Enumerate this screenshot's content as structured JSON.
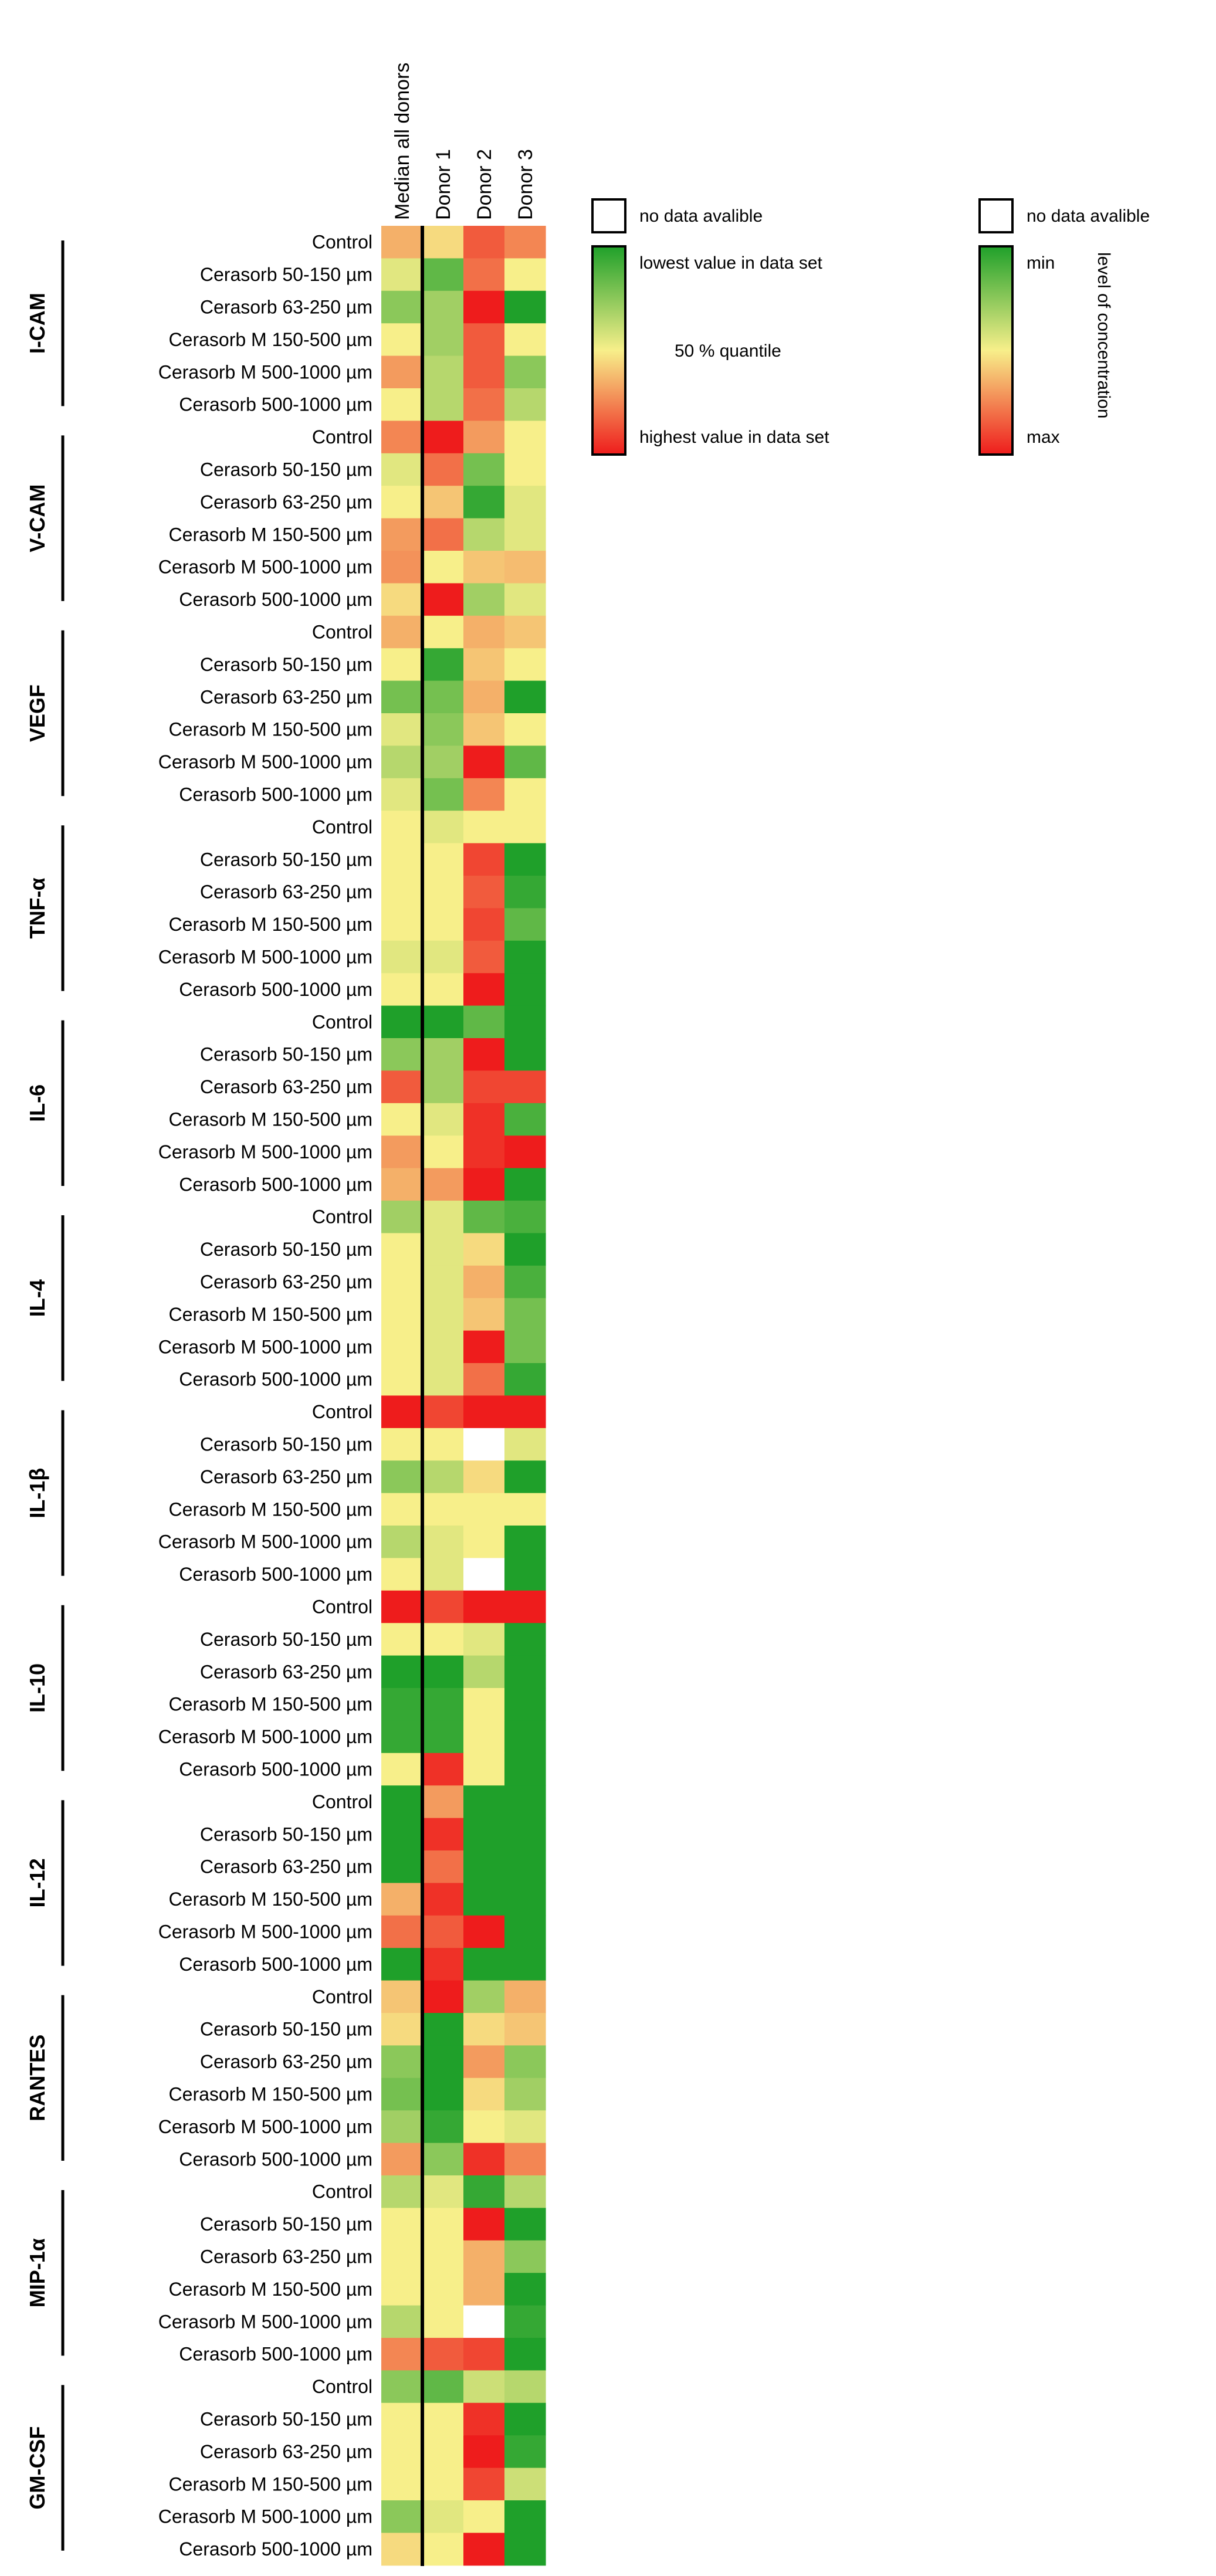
{
  "chart_data": {
    "type": "heatmap",
    "columns": [
      "Median all donors",
      "Donor 1",
      "Donor 2",
      "Donor 3"
    ],
    "row_labels": [
      "Control",
      "Cerasorb 50-150 µm",
      "Cerasorb 63-250 µm",
      "Cerasorb M 150-500 µm",
      "Cerasorb M 500-1000 µm",
      "Cerasorb 500-1000 µm"
    ],
    "value_scale": "0 = lowest value in data set (green), 0.5 = 50 % quantile (yellow), 1 = highest value in data set (red), null = no data avalible",
    "groups": [
      {
        "name": "I-CAM",
        "values": [
          [
            0.65,
            0.55,
            0.85,
            0.75
          ],
          [
            0.45,
            0.15,
            0.8,
            0.5
          ],
          [
            0.25,
            0.3,
            1.0,
            0.0
          ],
          [
            0.5,
            0.3,
            0.85,
            0.5
          ],
          [
            0.7,
            0.35,
            0.85,
            0.25
          ],
          [
            0.5,
            0.35,
            0.8,
            0.35
          ]
        ]
      },
      {
        "name": "V-CAM",
        "values": [
          [
            0.75,
            1.0,
            0.7,
            0.5
          ],
          [
            0.45,
            0.8,
            0.2,
            0.5
          ],
          [
            0.5,
            0.6,
            0.05,
            0.45
          ],
          [
            0.7,
            0.8,
            0.35,
            0.45
          ],
          [
            0.72,
            0.5,
            0.6,
            0.62
          ],
          [
            0.55,
            1.0,
            0.3,
            0.45
          ]
        ]
      },
      {
        "name": "VEGF",
        "values": [
          [
            0.65,
            0.5,
            0.65,
            0.6
          ],
          [
            0.5,
            0.05,
            0.6,
            0.5
          ],
          [
            0.2,
            0.2,
            0.65,
            0.0
          ],
          [
            0.45,
            0.25,
            0.6,
            0.5
          ],
          [
            0.35,
            0.3,
            1.0,
            0.15
          ],
          [
            0.45,
            0.2,
            0.75,
            0.5
          ]
        ]
      },
      {
        "name": "TNF-α",
        "values": [
          [
            0.5,
            0.45,
            0.5,
            0.5
          ],
          [
            0.5,
            0.5,
            0.9,
            0.0
          ],
          [
            0.5,
            0.5,
            0.85,
            0.05
          ],
          [
            0.5,
            0.5,
            0.9,
            0.15
          ],
          [
            0.45,
            0.45,
            0.85,
            0.0
          ],
          [
            0.5,
            0.5,
            1.0,
            0.0
          ]
        ]
      },
      {
        "name": "IL-6",
        "values": [
          [
            0.0,
            0.0,
            0.15,
            0.0
          ],
          [
            0.25,
            0.3,
            1.0,
            0.0
          ],
          [
            0.85,
            0.3,
            0.9,
            0.9
          ],
          [
            0.5,
            0.45,
            0.95,
            0.1
          ],
          [
            0.7,
            0.5,
            0.95,
            1.0
          ],
          [
            0.65,
            0.7,
            1.0,
            0.0
          ]
        ]
      },
      {
        "name": "IL-4",
        "values": [
          [
            0.3,
            0.45,
            0.15,
            0.1
          ],
          [
            0.5,
            0.45,
            0.55,
            0.0
          ],
          [
            0.5,
            0.45,
            0.65,
            0.1
          ],
          [
            0.5,
            0.45,
            0.6,
            0.2
          ],
          [
            0.5,
            0.45,
            1.0,
            0.2
          ],
          [
            0.5,
            0.45,
            0.8,
            0.05
          ]
        ]
      },
      {
        "name": "IL-1β",
        "values": [
          [
            1.0,
            0.9,
            1.0,
            1.0
          ],
          [
            0.5,
            0.5,
            null,
            0.45
          ],
          [
            0.25,
            0.35,
            0.55,
            0.0
          ],
          [
            0.5,
            0.5,
            0.5,
            0.5
          ],
          [
            0.35,
            0.45,
            0.5,
            0.0
          ],
          [
            0.5,
            0.45,
            null,
            0.0
          ]
        ]
      },
      {
        "name": "IL-10",
        "values": [
          [
            1.0,
            0.9,
            1.0,
            1.0
          ],
          [
            0.5,
            0.5,
            0.45,
            0.0
          ],
          [
            0.0,
            0.0,
            0.35,
            0.0
          ],
          [
            0.05,
            0.05,
            0.5,
            0.0
          ],
          [
            0.05,
            0.05,
            0.5,
            0.0
          ],
          [
            0.5,
            0.95,
            0.5,
            0.0
          ]
        ]
      },
      {
        "name": "IL-12",
        "values": [
          [
            0.0,
            0.7,
            0.0,
            0.0
          ],
          [
            0.0,
            0.95,
            0.0,
            0.0
          ],
          [
            0.0,
            0.8,
            0.0,
            0.0
          ],
          [
            0.65,
            0.95,
            0.0,
            0.0
          ],
          [
            0.8,
            0.85,
            1.0,
            0.0
          ],
          [
            0.0,
            0.95,
            0.0,
            0.0
          ]
        ]
      },
      {
        "name": "RANTES",
        "values": [
          [
            0.6,
            1.0,
            0.3,
            0.65
          ],
          [
            0.55,
            0.0,
            0.55,
            0.6
          ],
          [
            0.25,
            0.0,
            0.7,
            0.25
          ],
          [
            0.2,
            0.0,
            0.55,
            0.3
          ],
          [
            0.3,
            0.05,
            0.5,
            0.45
          ],
          [
            0.7,
            0.25,
            0.95,
            0.75
          ]
        ]
      },
      {
        "name": "MIP-1α",
        "values": [
          [
            0.35,
            0.45,
            0.05,
            0.35
          ],
          [
            0.5,
            0.5,
            1.0,
            0.0
          ],
          [
            0.5,
            0.5,
            0.65,
            0.25
          ],
          [
            0.5,
            0.5,
            0.65,
            0.0
          ],
          [
            0.35,
            0.5,
            null,
            0.05
          ],
          [
            0.75,
            0.85,
            0.9,
            0.0
          ]
        ]
      },
      {
        "name": "GM-CSF",
        "values": [
          [
            0.25,
            0.15,
            0.4,
            0.35
          ],
          [
            0.5,
            0.5,
            0.95,
            0.0
          ],
          [
            0.5,
            0.5,
            1.0,
            0.05
          ],
          [
            0.5,
            0.5,
            0.9,
            0.4
          ],
          [
            0.25,
            0.45,
            0.5,
            0.0
          ],
          [
            0.55,
            0.5,
            1.0,
            0.0
          ]
        ]
      }
    ],
    "legend_left": {
      "no_data": "no data avalible",
      "low": "lowest value in data set",
      "mid": "50 % quantile",
      "high": "highest value in data set"
    },
    "legend_right": {
      "no_data": "no data avalible",
      "min": "min",
      "max": "max",
      "title": "level of concentration"
    },
    "colors": {
      "low": "#1fa02a",
      "mid": "#f7ef8a",
      "high": "#ee1c1c",
      "no_data": "#ffffff",
      "line": "#000000"
    }
  }
}
